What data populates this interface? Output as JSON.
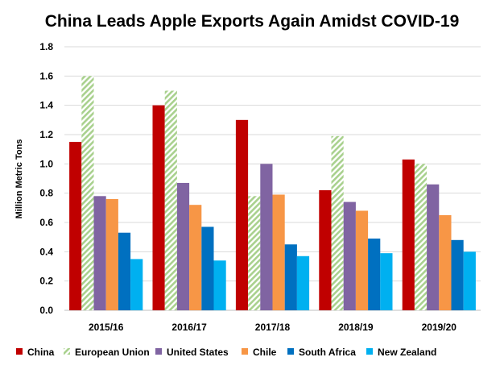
{
  "chart_data": {
    "type": "bar",
    "title": "China Leads Apple Exports Again Amidst COVID-19",
    "xlabel": "",
    "ylabel": "Million  Metric Tons",
    "ylim": [
      0,
      1.8
    ],
    "yticks": [
      "0.0",
      "0.2",
      "0.4",
      "0.6",
      "0.8",
      "1.0",
      "1.2",
      "1.4",
      "1.6",
      "1.8"
    ],
    "grid": true,
    "legend_position": "bottom",
    "categories": [
      "2015/16",
      "2016/17",
      "2017/18",
      "2018/19",
      "2019/20"
    ],
    "series": [
      {
        "name": "China",
        "color": "#c00000",
        "pattern": "solid",
        "values": [
          1.15,
          1.4,
          1.3,
          0.82,
          1.03
        ]
      },
      {
        "name": "European Union",
        "color": "#a9d18e",
        "pattern": "hatch",
        "values": [
          1.6,
          1.5,
          0.78,
          1.19,
          1.0
        ]
      },
      {
        "name": "United States",
        "color": "#8064a2",
        "pattern": "solid",
        "values": [
          0.78,
          0.87,
          1.0,
          0.74,
          0.86
        ]
      },
      {
        "name": "Chile",
        "color": "#f79646",
        "pattern": "solid",
        "values": [
          0.76,
          0.72,
          0.79,
          0.68,
          0.65
        ]
      },
      {
        "name": "South Africa",
        "color": "#0070c0",
        "pattern": "solid",
        "values": [
          0.53,
          0.57,
          0.45,
          0.49,
          0.48
        ]
      },
      {
        "name": "New Zealand",
        "color": "#00b0f0",
        "pattern": "solid",
        "values": [
          0.35,
          0.34,
          0.37,
          0.39,
          0.4
        ]
      }
    ]
  }
}
